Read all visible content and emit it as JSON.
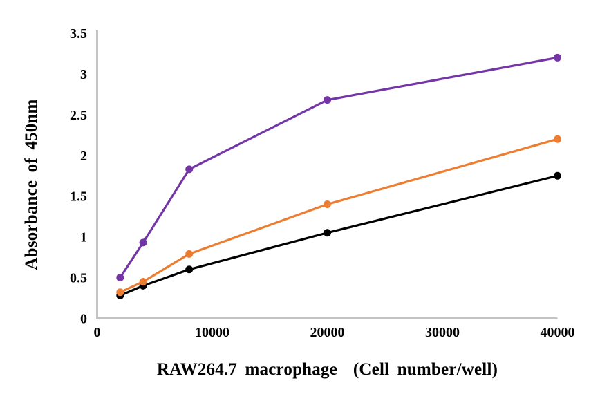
{
  "chart_data": {
    "type": "line",
    "title": "",
    "xlabel": "RAW264.7 macrophage  (Cell number/well)",
    "ylabel": "Absorbance of 450nm",
    "x": [
      2000,
      4000,
      8000,
      20000,
      40000
    ],
    "series": [
      {
        "name": "purple",
        "color": "#7435A6",
        "values": [
          0.5,
          0.93,
          1.83,
          2.68,
          3.2
        ]
      },
      {
        "name": "orange",
        "color": "#ED7D31",
        "values": [
          0.32,
          0.45,
          0.79,
          1.4,
          2.2
        ]
      },
      {
        "name": "black",
        "color": "#000000",
        "values": [
          0.28,
          0.4,
          0.6,
          1.05,
          1.75
        ]
      }
    ],
    "xlim": [
      0,
      40000
    ],
    "ylim": [
      0,
      3.5
    ],
    "x_ticks": [
      0,
      10000,
      20000,
      30000,
      40000
    ],
    "x_tick_labels": [
      "0",
      "10000",
      "20000",
      "30000",
      "40000"
    ],
    "y_ticks": [
      0,
      0.5,
      1,
      1.5,
      2,
      2.5,
      3,
      3.5
    ],
    "y_tick_labels": [
      "0",
      "0.5",
      "1",
      "1.5",
      "2",
      "2.5",
      "3",
      "3.5"
    ],
    "grid": false,
    "legend": "none",
    "axis_color": "#C3C3C3",
    "tick_label_color": "#000000",
    "marker": "circle",
    "marker_radius": 5.5,
    "line_width": 3.2
  }
}
